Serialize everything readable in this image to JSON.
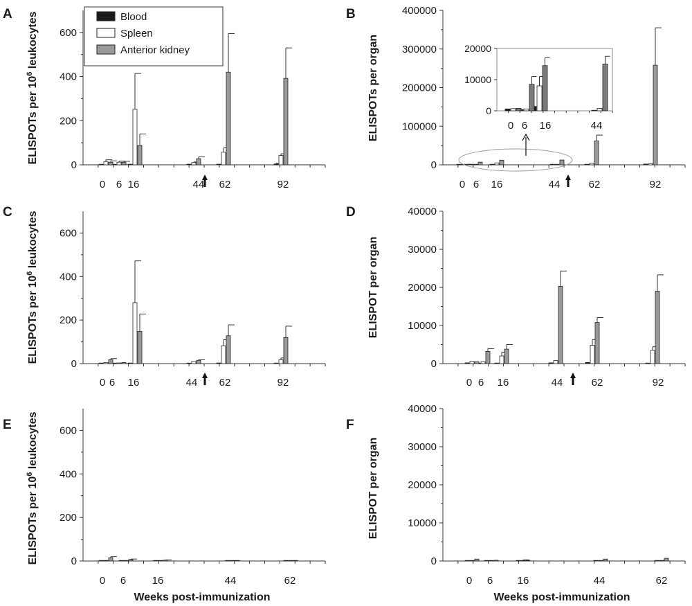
{
  "legend": {
    "entries": [
      {
        "label": "Blood",
        "color": "#1a1a1a"
      },
      {
        "label": "Spleen",
        "color": "#ffffff"
      },
      {
        "label": "Anterior kidney",
        "color": "#9a9a9a"
      }
    ]
  },
  "colors": {
    "blood": "#1a1a1a",
    "spleen": "#ffffff",
    "kidney": "#9a9a9a",
    "kidney_dark": "#7a7a7a"
  },
  "arrow_label": "immunization booster arrow",
  "chart_data": [
    {
      "panel": "A",
      "type": "bar",
      "ylabel_pre": "ELISPOTs per 10",
      "ylabel_sup": "6",
      "ylabel_post": " leukocytes",
      "xlabel": "",
      "ylim": [
        0,
        700
      ],
      "yticks": [
        0,
        200,
        400,
        600
      ],
      "categories": [
        "0",
        "6",
        "16",
        "44",
        "62",
        "92"
      ],
      "series": [
        {
          "name": "Blood",
          "values": [
            2,
            2,
            3,
            3,
            3,
            4
          ],
          "errors": [
            0,
            0,
            0,
            0,
            0,
            3
          ]
        },
        {
          "name": "Spleen",
          "values": [
            15,
            12,
            252,
            10,
            57,
            42
          ],
          "errors": [
            8,
            5,
            162,
            3,
            20,
            8
          ]
        },
        {
          "name": "Anterior kidney",
          "values": [
            12,
            12,
            88,
            28,
            420,
            392
          ],
          "errors": [
            6,
            4,
            52,
            8,
            175,
            138
          ]
        }
      ],
      "arrow_after_category": "44"
    },
    {
      "panel": "B",
      "type": "bar",
      "ylabel": "ELISPOTs per organ",
      "xlabel": "",
      "ylim": [
        0,
        400000
      ],
      "yticks": [
        0,
        100000,
        200000,
        300000,
        400000
      ],
      "categories": [
        "0",
        "6",
        "16",
        "44",
        "62",
        "92"
      ],
      "series": [
        {
          "name": "Blood",
          "values": [
            80,
            50,
            300,
            100,
            500,
            2000
          ],
          "errors": [
            0,
            0,
            0,
            0,
            0,
            0
          ]
        },
        {
          "name": "Spleen",
          "values": [
            300,
            1500,
            5000,
            800,
            4000,
            3000
          ],
          "errors": [
            0,
            0,
            0,
            0,
            0,
            0
          ]
        },
        {
          "name": "Anterior kidney",
          "values": [
            600,
            7000,
            12000,
            12500,
            62000,
            258000
          ],
          "errors": [
            0,
            0,
            0,
            0,
            15000,
            97000
          ]
        }
      ],
      "arrow_after_category": "44",
      "inset": {
        "ylim": [
          0,
          20000
        ],
        "yticks": [
          0,
          10000,
          20000
        ],
        "categories": [
          "0",
          "6",
          "16",
          "44"
        ],
        "series": [
          {
            "name": "Blood",
            "values": [
              600,
              400,
              1400,
              100
            ]
          },
          {
            "name": "Spleen",
            "values": [
              700,
              600,
              8000,
              800
            ]
          },
          {
            "name": "Anterior kidney",
            "values": [
              800,
              8500,
              14500,
              15000
            ]
          }
        ],
        "errors": [
          [
            0,
            0,
            0,
            0
          ],
          [
            0,
            0,
            3000,
            0
          ],
          [
            0,
            2500,
            2500,
            2500
          ]
        ]
      }
    },
    {
      "panel": "C",
      "type": "bar",
      "ylabel_pre": "ELISPOTs per 10",
      "ylabel_sup": "6",
      "ylabel_post": " leukocytes",
      "xlabel": "",
      "ylim": [
        0,
        700
      ],
      "yticks": [
        0,
        200,
        400,
        600
      ],
      "categories": [
        "0",
        "6",
        "16",
        "44",
        "62",
        "92"
      ],
      "series": [
        {
          "name": "Blood",
          "values": [
            2,
            2,
            2,
            2,
            3,
            2
          ],
          "errors": [
            0,
            0,
            0,
            0,
            0,
            0
          ]
        },
        {
          "name": "Spleen",
          "values": [
            5,
            3,
            280,
            10,
            82,
            18
          ],
          "errors": [
            0,
            0,
            192,
            0,
            28,
            8
          ]
        },
        {
          "name": "Anterior kidney",
          "values": [
            18,
            5,
            148,
            15,
            128,
            120
          ],
          "errors": [
            5,
            0,
            80,
            3,
            50,
            52
          ]
        }
      ],
      "arrow_after_category": "44"
    },
    {
      "panel": "D",
      "type": "bar",
      "ylabel": "ELISPOT per organ",
      "xlabel": "",
      "ylim": [
        0,
        40000
      ],
      "yticks": [
        0,
        10000,
        20000,
        30000,
        40000
      ],
      "categories": [
        "0",
        "6",
        "16",
        "44",
        "62",
        "92"
      ],
      "series": [
        {
          "name": "Blood",
          "values": [
            200,
            100,
            100,
            200,
            300,
            100
          ],
          "errors": [
            0,
            0,
            0,
            0,
            0,
            0
          ]
        },
        {
          "name": "Spleen",
          "values": [
            600,
            500,
            2000,
            800,
            4800,
            3500
          ],
          "errors": [
            0,
            0,
            1000,
            0,
            1500,
            900
          ]
        },
        {
          "name": "Anterior kidney",
          "values": [
            500,
            3200,
            3800,
            20300,
            10800,
            19000
          ],
          "errors": [
            0,
            700,
            1200,
            4000,
            1300,
            4300
          ]
        }
      ],
      "arrow_after_category": "44"
    },
    {
      "panel": "E",
      "type": "bar",
      "ylabel_pre": "ELISPOTs per 10",
      "ylabel_sup": "6",
      "ylabel_post": " leukocytes",
      "xlabel": "Weeks post-immunization",
      "ylim": [
        0,
        700
      ],
      "yticks": [
        0,
        200,
        400,
        600
      ],
      "categories": [
        "0",
        "6",
        "16",
        "44",
        "62"
      ],
      "series": [
        {
          "name": "Blood",
          "values": [
            0,
            0,
            0,
            0,
            0
          ],
          "errors": [
            0,
            0,
            0,
            0,
            0
          ]
        },
        {
          "name": "Spleen",
          "values": [
            2,
            1,
            1,
            0,
            0
          ],
          "errors": [
            0,
            0,
            0,
            0,
            0
          ]
        },
        {
          "name": "Anterior kidney",
          "values": [
            15,
            7,
            4,
            2,
            2
          ],
          "errors": [
            5,
            2,
            1,
            0,
            0
          ]
        }
      ]
    },
    {
      "panel": "F",
      "type": "bar",
      "ylabel": "ELISPOT per organ",
      "xlabel": "Weeks post-immunization",
      "ylim": [
        0,
        40000
      ],
      "yticks": [
        0,
        10000,
        20000,
        30000,
        40000
      ],
      "categories": [
        "0",
        "6",
        "16",
        "44",
        "62"
      ],
      "series": [
        {
          "name": "Blood",
          "values": [
            0,
            0,
            0,
            0,
            0
          ],
          "errors": [
            0,
            0,
            0,
            0,
            0
          ]
        },
        {
          "name": "Spleen",
          "values": [
            100,
            100,
            100,
            0,
            0
          ],
          "errors": [
            0,
            0,
            200,
            0,
            0
          ]
        },
        {
          "name": "Anterior kidney",
          "values": [
            500,
            200,
            100,
            500,
            700
          ],
          "errors": [
            0,
            0,
            0,
            0,
            0
          ]
        }
      ]
    }
  ]
}
